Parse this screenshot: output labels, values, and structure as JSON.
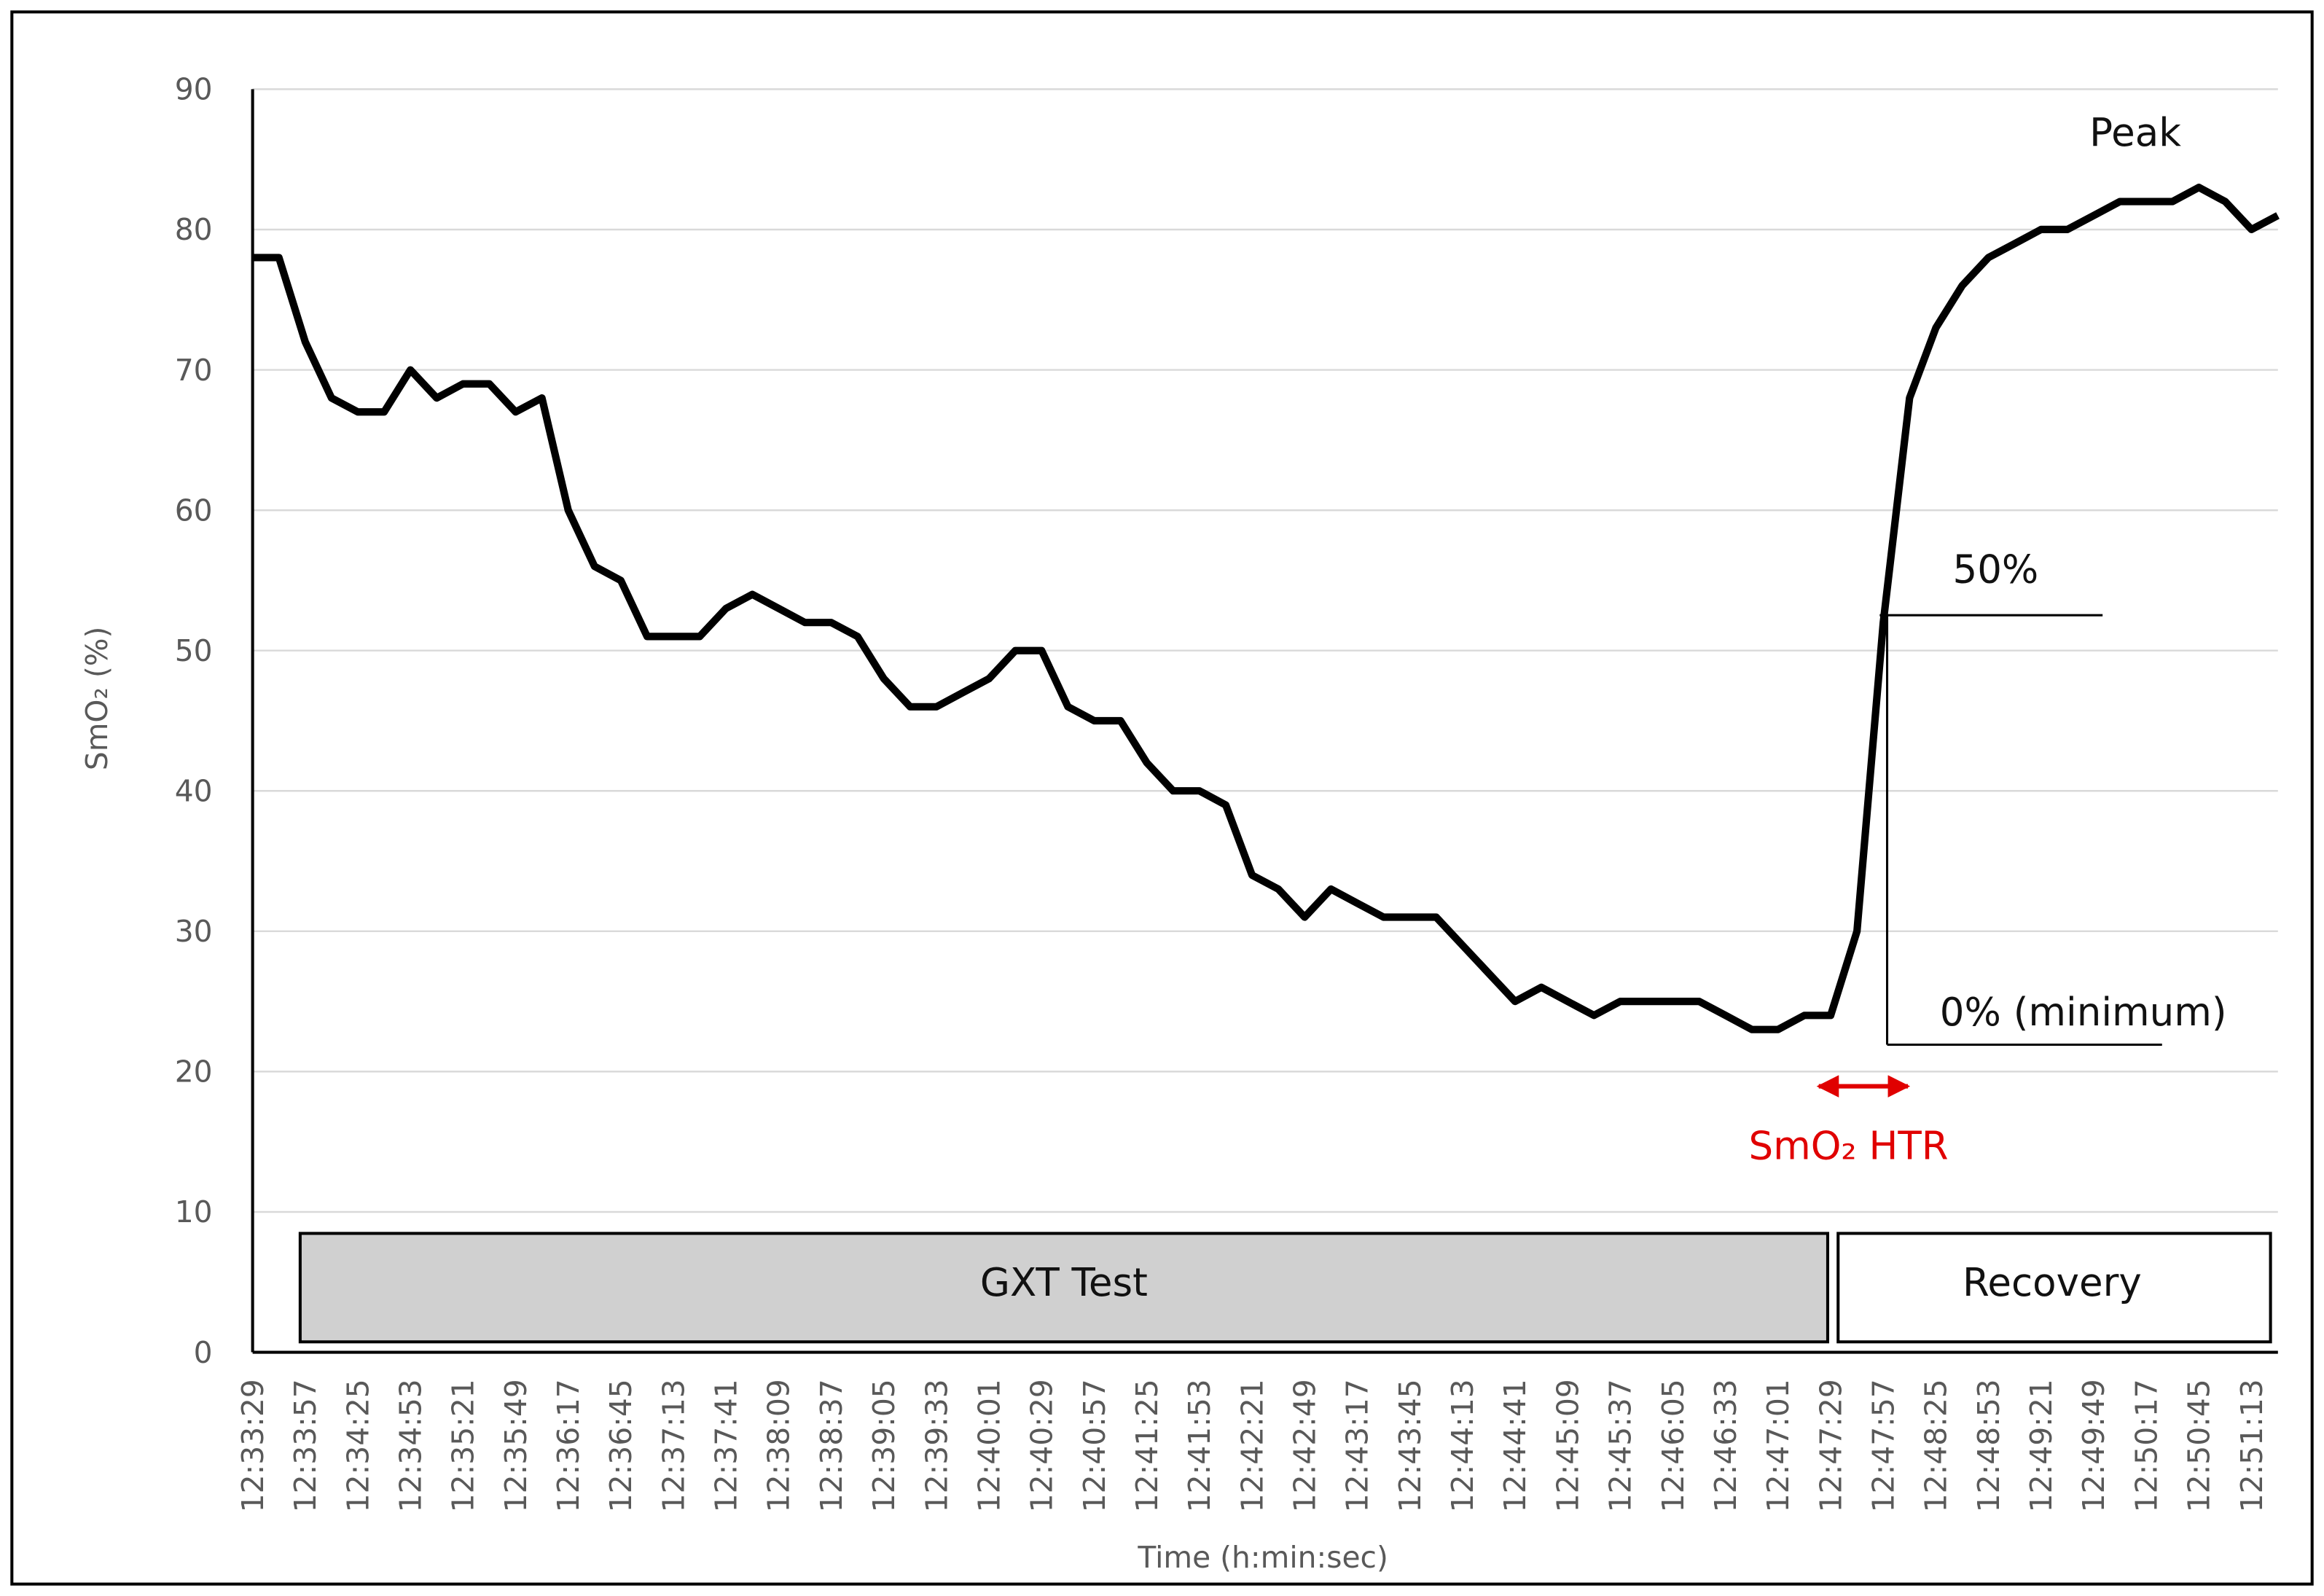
{
  "chart_data": {
    "type": "line",
    "y_label": "SmO₂ (%)",
    "x_label": "Time (h:min:sec)",
    "categories": [
      "12:33:29",
      null,
      "12:33:57",
      null,
      "12:34:25",
      null,
      "12:34:53",
      null,
      "12:35:21",
      null,
      "12:35:49",
      null,
      "12:36:17",
      null,
      "12:36:45",
      null,
      "12:37:13",
      null,
      "12:37:41",
      null,
      "12:38:09",
      null,
      "12:38:37",
      null,
      "12:39:05",
      null,
      "12:39:33",
      null,
      "12:40:01",
      null,
      "12:40:29",
      null,
      "12:40:57",
      null,
      "12:41:25",
      null,
      "12:41:53",
      null,
      "12:42:21",
      null,
      "12:42:49",
      null,
      "12:43:17",
      null,
      "12:43:45",
      null,
      "12:44:13",
      null,
      "12:44:41",
      null,
      "12:45:09",
      null,
      "12:45:37",
      null,
      "12:46:05",
      null,
      "12:46:33",
      null,
      "12:47:01",
      null,
      "12:47:29",
      null,
      "12:47:57",
      null,
      "12:48:25",
      null,
      "12:48:53",
      null,
      "12:49:21",
      null,
      "12:49:49",
      null,
      "12:50:17",
      null,
      "12:50:45",
      null,
      "12:51:13",
      null
    ],
    "values": [
      78,
      78,
      72,
      68,
      67,
      67,
      70,
      68,
      69,
      69,
      67,
      68,
      60,
      56,
      55,
      51,
      51,
      51,
      53,
      54,
      53,
      52,
      52,
      51,
      48,
      46,
      46,
      47,
      48,
      50,
      50,
      46,
      45,
      45,
      42,
      40,
      40,
      39,
      34,
      33,
      31,
      33,
      32,
      31,
      31,
      31,
      29,
      27,
      25,
      26,
      25,
      24,
      25,
      25,
      25,
      25,
      24,
      23,
      23,
      24,
      24,
      30,
      52,
      68,
      73,
      76,
      78,
      79,
      80,
      80,
      81,
      82,
      82,
      82,
      83,
      82,
      80,
      81
    ],
    "color": "#000000",
    "ylim": [
      0,
      90
    ],
    "yticks": [
      0,
      10,
      20,
      30,
      40,
      50,
      60,
      70,
      80,
      90
    ],
    "grid": true,
    "annotations": {
      "peak": "Peak",
      "half": "50%",
      "minimum": "0% (minimum)",
      "htr": "SmO₂ HTR",
      "phase_test": "GXT Test",
      "phase_recovery": "Recovery"
    }
  }
}
